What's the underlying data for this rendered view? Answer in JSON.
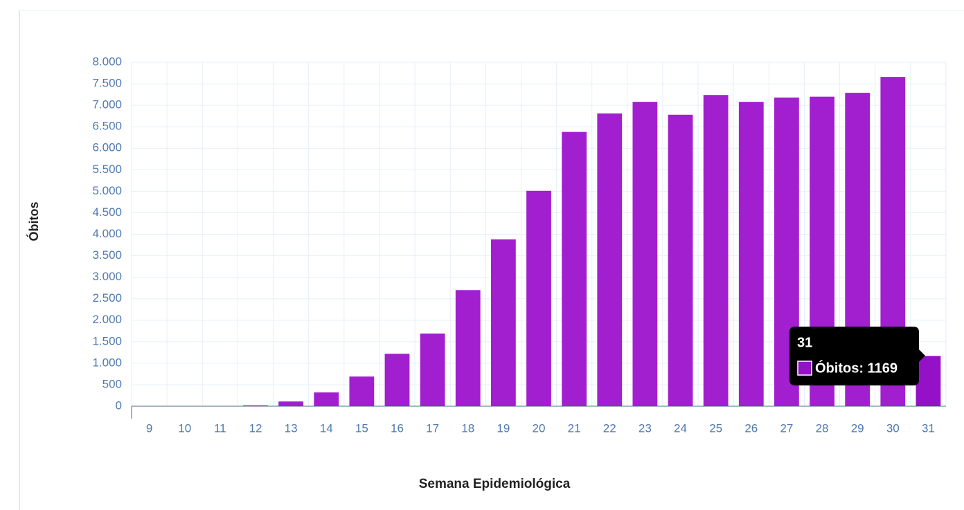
{
  "chart_data": {
    "type": "bar",
    "x_label": "Semana Epidemiológica",
    "y_label": "Óbitos",
    "categories": [
      "9",
      "10",
      "11",
      "12",
      "13",
      "14",
      "15",
      "16",
      "17",
      "18",
      "19",
      "20",
      "21",
      "22",
      "23",
      "24",
      "25",
      "26",
      "27",
      "28",
      "29",
      "30",
      "31"
    ],
    "series": [
      {
        "name": "Óbitos",
        "color": "#a21fd0",
        "values": [
          0,
          0,
          0,
          20,
          110,
          320,
          690,
          1220,
          1690,
          2700,
          3880,
          5010,
          6380,
          6810,
          7080,
          6780,
          7240,
          7080,
          7180,
          7200,
          7290,
          7660,
          1169
        ]
      }
    ],
    "highlight_color": "#9511c8",
    "ylim": [
      0,
      8000
    ],
    "yticks": [
      0,
      500,
      {
        "value": 1000,
        "label": "1.000"
      },
      {
        "value": 1500,
        "label": "1.500"
      },
      {
        "value": 2000,
        "label": "2.000"
      },
      {
        "value": 2500,
        "label": "2.500"
      },
      {
        "value": 3000,
        "label": "3.000"
      },
      {
        "value": 3500,
        "label": "3.500"
      },
      {
        "value": 4000,
        "label": "4.000"
      },
      {
        "value": 4500,
        "label": "4.500"
      },
      {
        "value": 5000,
        "label": "5.000"
      },
      {
        "value": 5500,
        "label": "5.500"
      },
      {
        "value": 6000,
        "label": "6.000"
      },
      {
        "value": 6500,
        "label": "6.500"
      },
      {
        "value": 7000,
        "label": "7.000"
      },
      {
        "value": 7500,
        "label": "7.500"
      },
      {
        "value": 8000,
        "label": "8.000"
      }
    ],
    "grid": true,
    "tooltip": {
      "text": "Óbitos: 1169"
    }
  }
}
